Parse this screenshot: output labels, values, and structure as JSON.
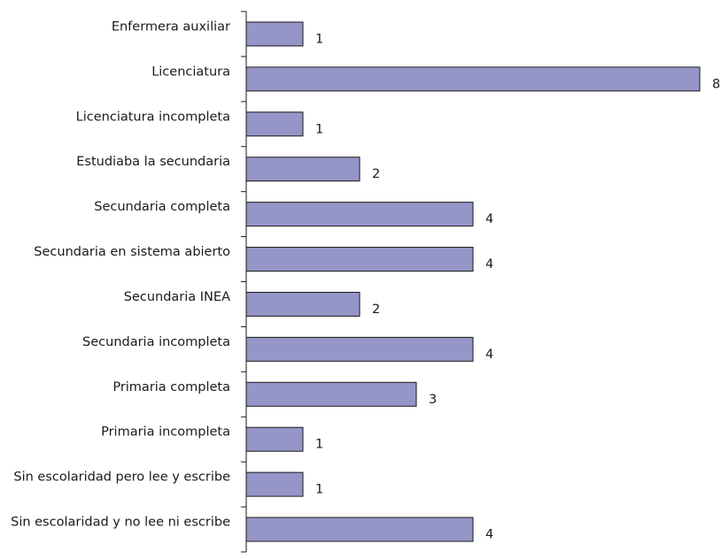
{
  "chart_data": {
    "type": "bar",
    "orientation": "horizontal",
    "categories": [
      "Enfermera auxiliar",
      "Licenciatura",
      "Licenciatura incompleta",
      "Estudiaba la secundaria",
      "Secundaria completa",
      "Secundaria en sistema abierto",
      "Secundaria INEA",
      "Secundaria incompleta",
      "Primaria completa",
      "Primaria incompleta",
      "Sin escolaridad pero lee y escribe",
      "Sin escolaridad y no lee ni escribe"
    ],
    "values": [
      1,
      8,
      1,
      2,
      4,
      4,
      2,
      4,
      3,
      1,
      1,
      4
    ],
    "value_labels": [
      "1",
      "8",
      "1",
      "2",
      "4",
      "4",
      "2",
      "4",
      "3",
      "1",
      "1",
      "4"
    ],
    "xlim": [
      0,
      8
    ],
    "grid": false,
    "legend": "none",
    "bar_color": "#9595c8"
  }
}
